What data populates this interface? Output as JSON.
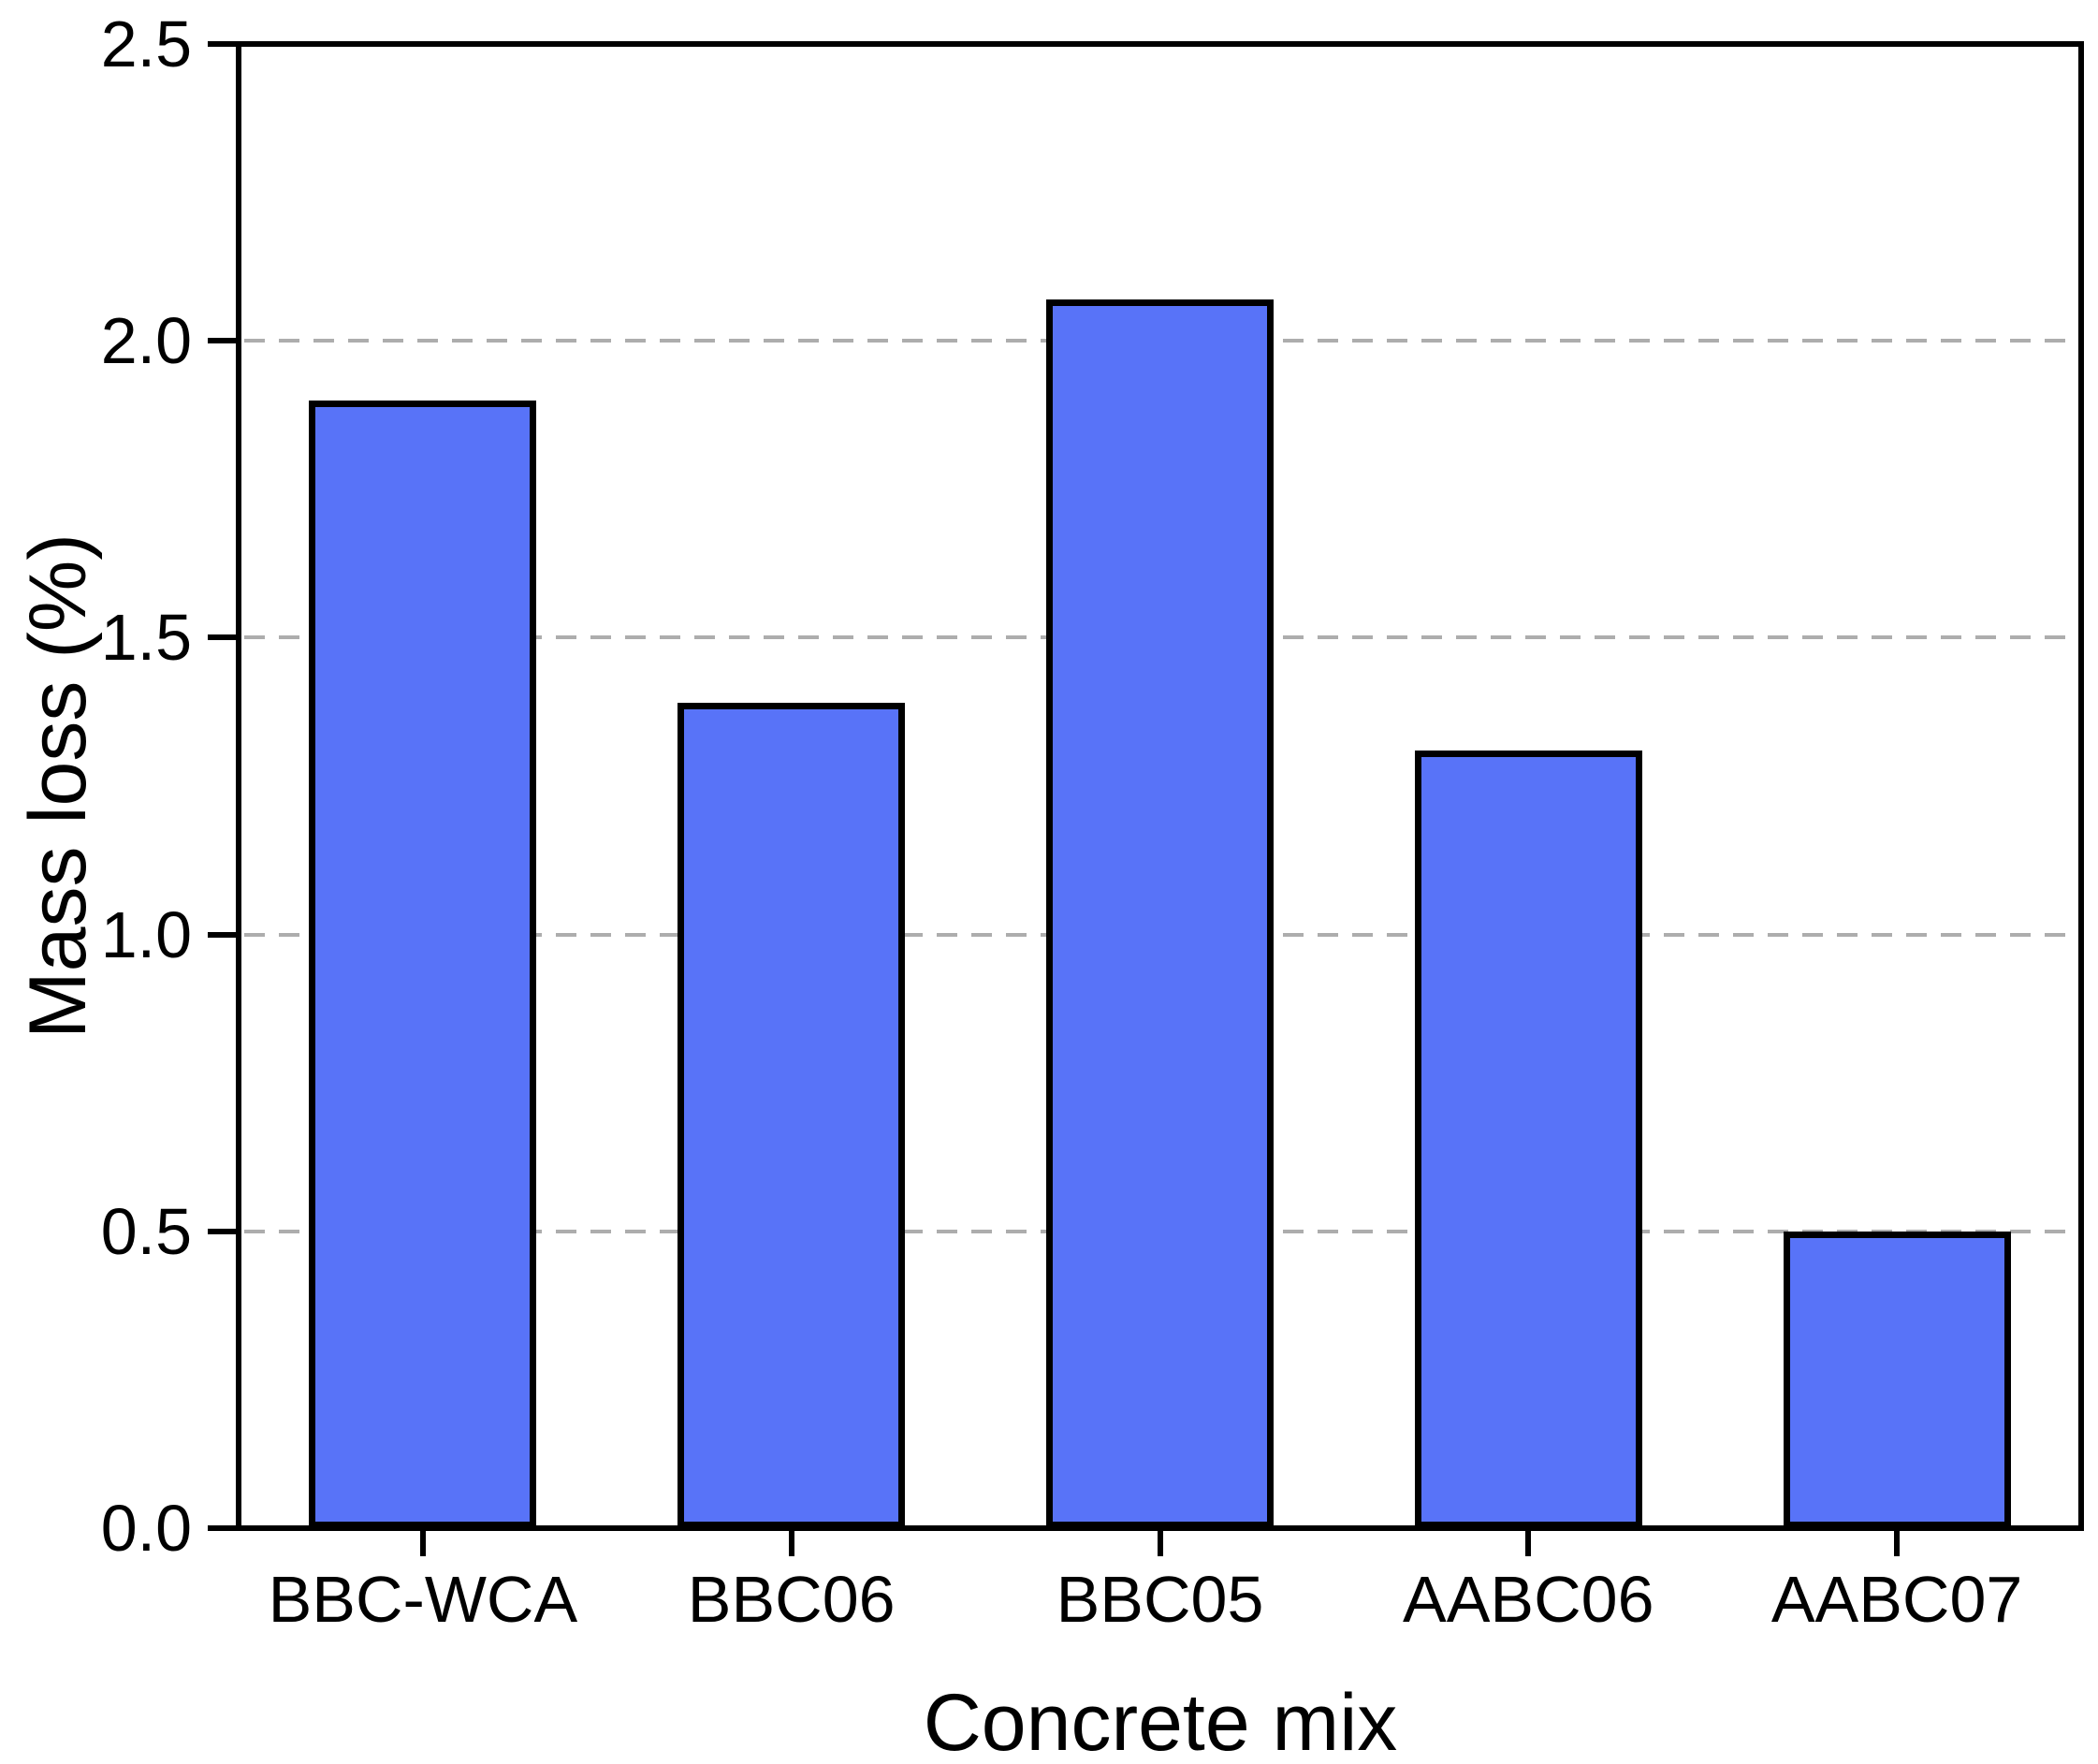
{
  "figure": {
    "background": "#ffffff"
  },
  "chart_data": {
    "type": "bar",
    "title": "",
    "xlabel": "Concrete mix",
    "ylabel": "Mass loss (%)",
    "categories": [
      "BBC-WCA",
      "BBC06",
      "BBC05",
      "AABC06",
      "AABC07"
    ],
    "values": [
      1.9,
      1.39,
      2.07,
      1.31,
      0.5
    ],
    "ylim": [
      0,
      2.5
    ],
    "yticks": [
      {
        "value": 0.0,
        "label": "0.0"
      },
      {
        "value": 0.5,
        "label": "0.5"
      },
      {
        "value": 1.0,
        "label": "1.0"
      },
      {
        "value": 1.5,
        "label": "1.5"
      },
      {
        "value": 2.0,
        "label": "2.0"
      },
      {
        "value": 2.5,
        "label": "2.5"
      }
    ],
    "grid": "horizontal dashed gridlines at every y tick except 0 and top",
    "legend": "none",
    "colors": {
      "bar_fill": "#5873f8",
      "bar_edge": "#000000",
      "grid_line": "#adadad",
      "axis": "#000000",
      "text": "#000000"
    }
  }
}
